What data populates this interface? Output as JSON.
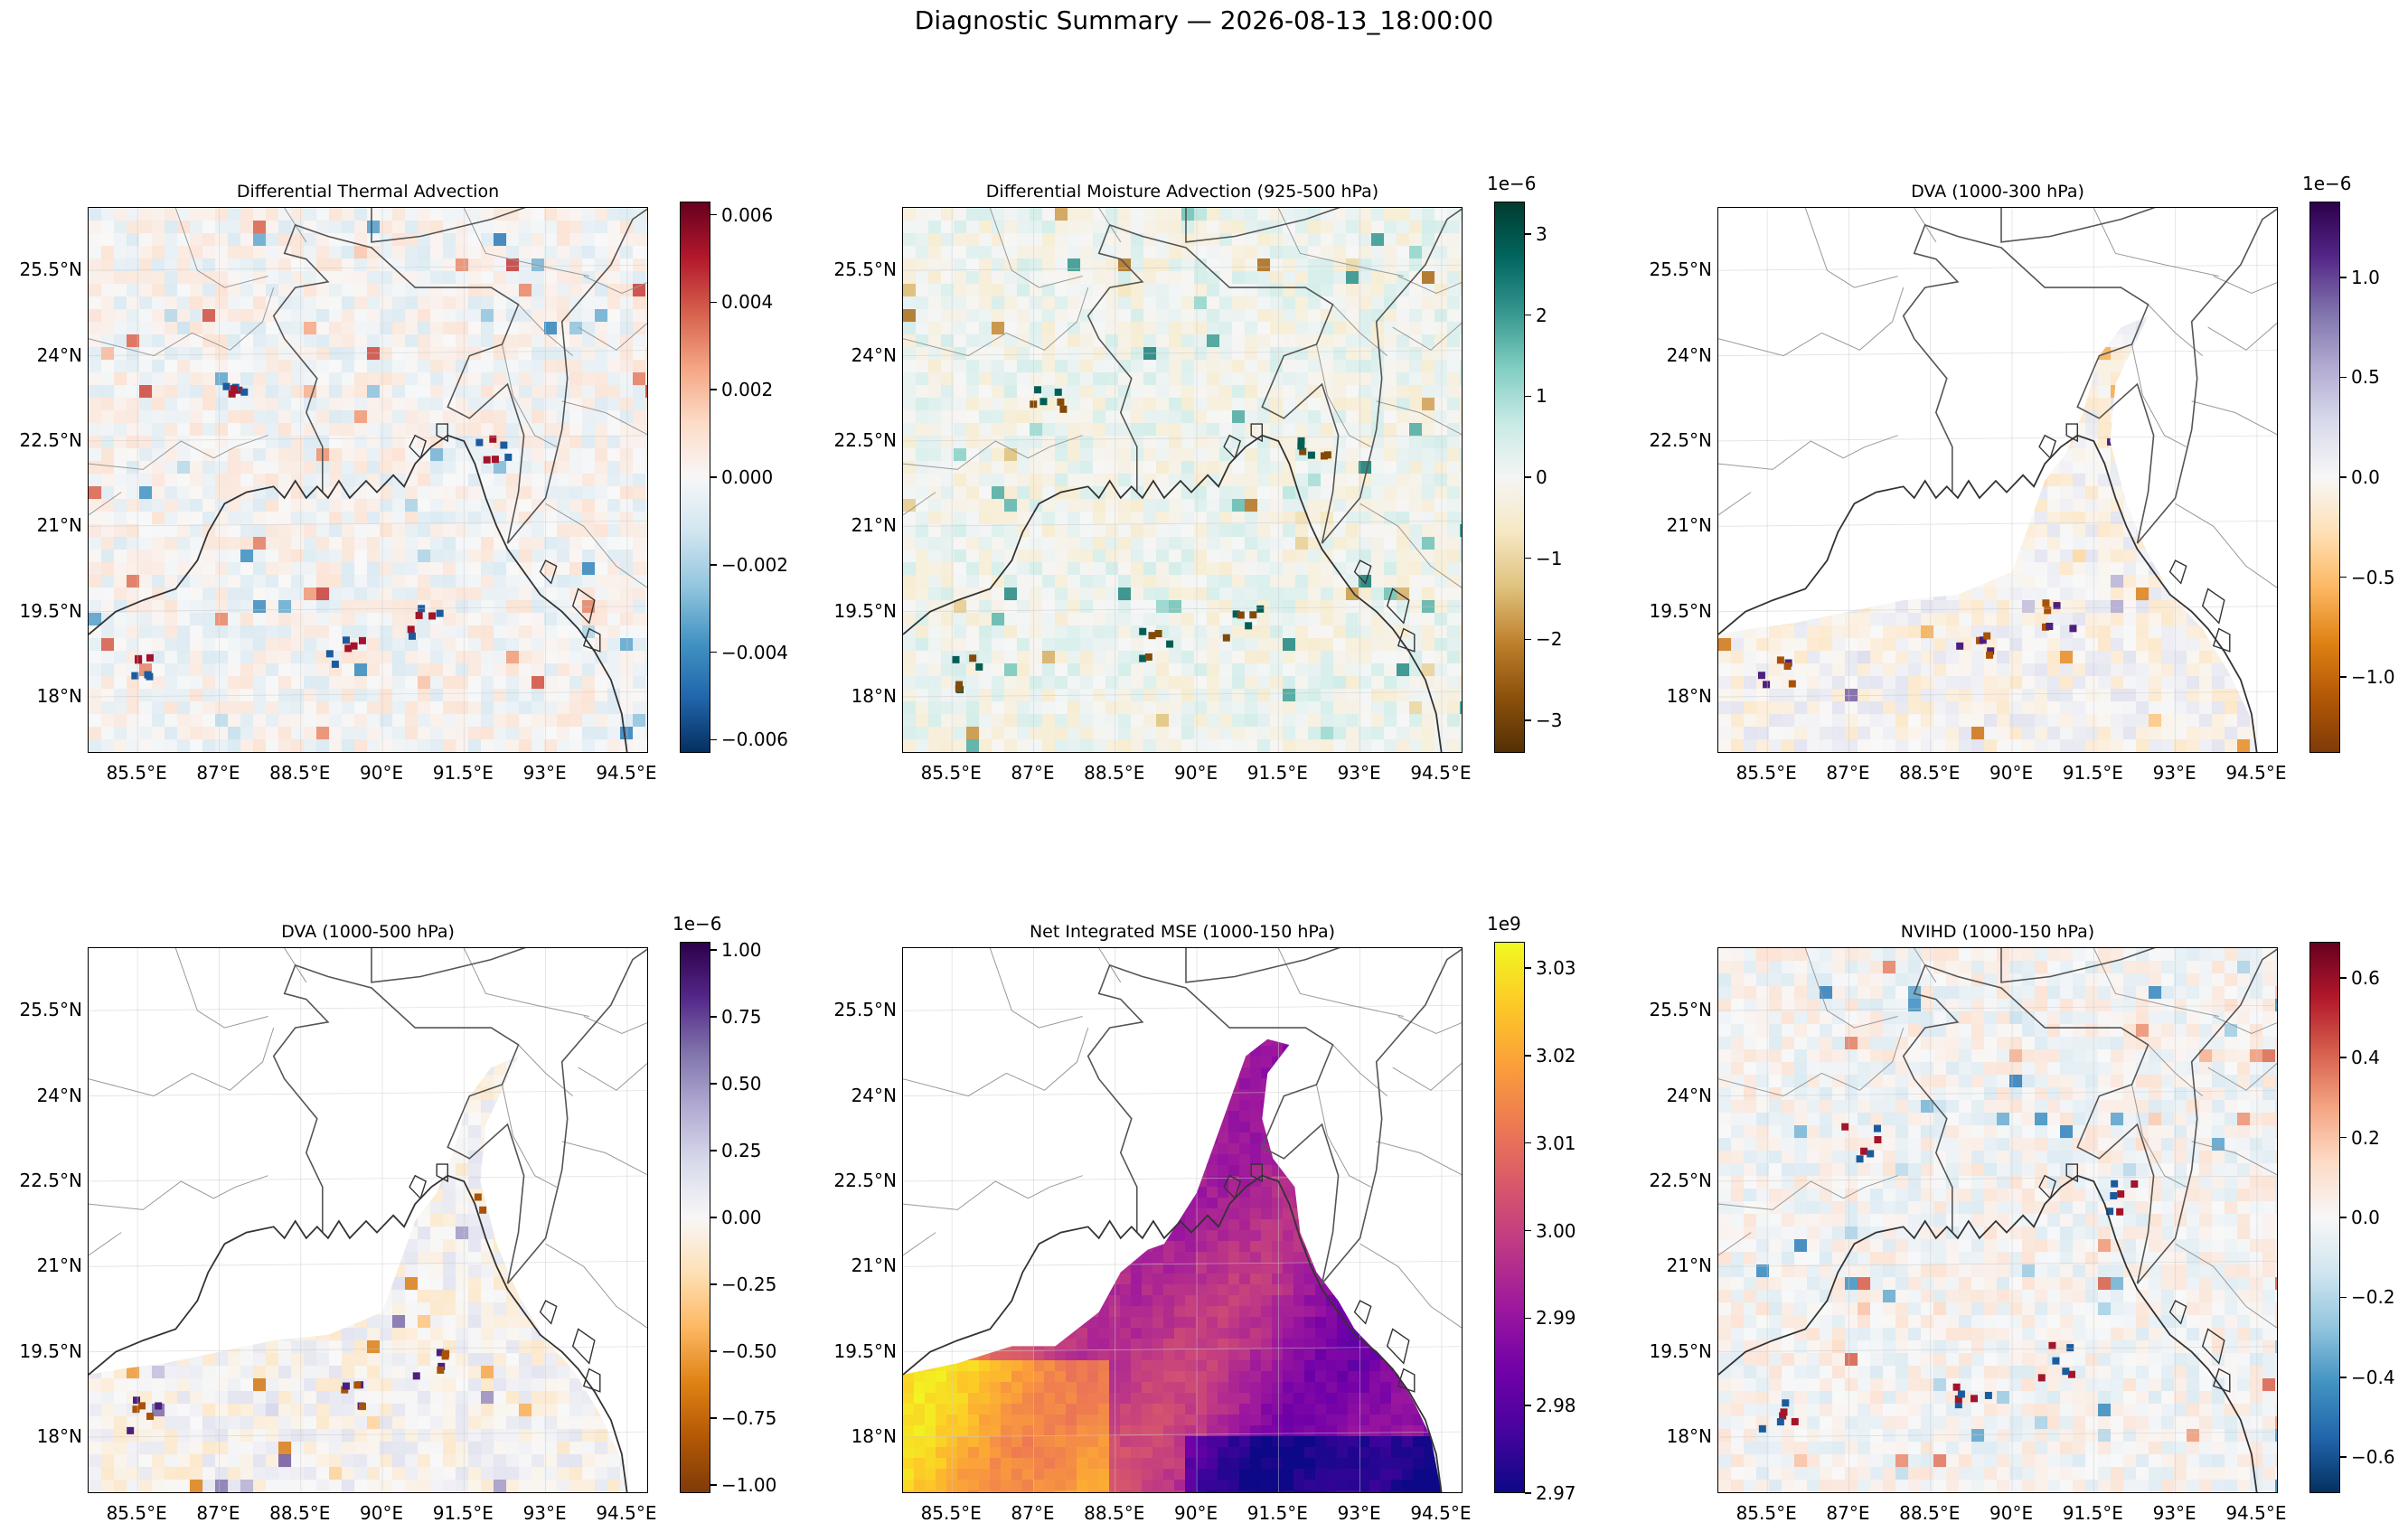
{
  "figure": {
    "title": "Diagnostic Summary — 2026-08-13_18:00:00"
  },
  "axes_ticks": {
    "lon_labels": [
      "85.5°E",
      "87°E",
      "88.5°E",
      "90°E",
      "91.5°E",
      "93°E",
      "94.5°E"
    ],
    "lat_labels": [
      "25.5°N",
      "24°N",
      "22.5°N",
      "21°N",
      "19.5°N",
      "18°N"
    ]
  },
  "chart_data": [
    {
      "type": "heatmap",
      "title": "Differential Thermal Advection",
      "colormap": "RdBu_r",
      "colorbar": {
        "ticks": [
          0.006,
          0.004,
          0.002,
          0.0,
          -0.002,
          -0.004,
          -0.006
        ],
        "tick_labels": [
          "0.006",
          "0.004",
          "0.002",
          "0.000",
          "−0.002",
          "−0.004",
          "−0.006"
        ],
        "range": [
          -0.0063,
          0.0063
        ],
        "exponent": ""
      },
      "colors": [
        "#053061",
        "#2166ac",
        "#4393c3",
        "#92c5de",
        "#d1e5f0",
        "#f7f7f7",
        "#fddbc7",
        "#f4a582",
        "#d6604d",
        "#b2182b",
        "#67001f"
      ]
    },
    {
      "type": "heatmap",
      "title": "Differential Moisture Advection (925-500 hPa)",
      "colormap": "BrBG",
      "colorbar": {
        "ticks": [
          3,
          2,
          1,
          0,
          -1,
          -2,
          -3
        ],
        "tick_labels": [
          "3",
          "2",
          "1",
          "0",
          "−1",
          "−2",
          "−3"
        ],
        "range": [
          -3.4,
          3.4
        ],
        "exponent": "1e−6"
      },
      "colors": [
        "#543005",
        "#8c510a",
        "#bf812d",
        "#dfc27d",
        "#f6e8c3",
        "#f5f5f5",
        "#c7eae5",
        "#80cdc1",
        "#35978f",
        "#01665e",
        "#003c30"
      ]
    },
    {
      "type": "heatmap",
      "title": "DVA (1000-300 hPa)",
      "colormap": "PuOr",
      "colorbar": {
        "ticks": [
          1.0,
          0.5,
          0.0,
          -0.5,
          -1.0
        ],
        "tick_labels": [
          "1.0",
          "0.5",
          "0.0",
          "−0.5",
          "−1.0"
        ],
        "range": [
          -1.38,
          1.38
        ],
        "exponent": "1e−6"
      },
      "colors": [
        "#7f3b08",
        "#b35806",
        "#e08214",
        "#fdb863",
        "#fee0b6",
        "#f7f7f7",
        "#d8daeb",
        "#b2abd2",
        "#8073ac",
        "#542788",
        "#2d004b"
      ]
    },
    {
      "type": "heatmap",
      "title": "DVA (1000-500 hPa)",
      "colormap": "PuOr",
      "colorbar": {
        "ticks": [
          1.0,
          0.75,
          0.5,
          0.25,
          0.0,
          -0.25,
          -0.5,
          -0.75,
          -1.0
        ],
        "tick_labels": [
          "1.00",
          "0.75",
          "0.50",
          "0.25",
          "0.00",
          "−0.25",
          "−0.50",
          "−0.75",
          "−1.00"
        ],
        "range": [
          -1.03,
          1.03
        ],
        "exponent": "1e−6"
      },
      "colors": [
        "#7f3b08",
        "#b35806",
        "#e08214",
        "#fdb863",
        "#fee0b6",
        "#f7f7f7",
        "#d8daeb",
        "#b2abd2",
        "#8073ac",
        "#542788",
        "#2d004b"
      ]
    },
    {
      "type": "heatmap",
      "title": "Net Integrated MSE (1000-150 hPa)",
      "colormap": "plasma",
      "colorbar": {
        "ticks": [
          3.03,
          3.02,
          3.01,
          3.0,
          2.99,
          2.98,
          2.97
        ],
        "tick_labels": [
          "3.03",
          "3.02",
          "3.01",
          "3.00",
          "2.99",
          "2.98",
          "2.97"
        ],
        "range": [
          2.97,
          3.033
        ],
        "exponent": "1e9"
      },
      "colors": [
        "#0d0887",
        "#46039f",
        "#7201a8",
        "#9c179e",
        "#bd3786",
        "#d8576b",
        "#ed7953",
        "#fb9f3a",
        "#fdca26",
        "#f0f921"
      ]
    },
    {
      "type": "heatmap",
      "title": "NVIHD (1000-150 hPa)",
      "colormap": "RdBu_r",
      "colorbar": {
        "ticks": [
          0.6,
          0.4,
          0.2,
          0.0,
          -0.2,
          -0.4,
          -0.6
        ],
        "tick_labels": [
          "0.6",
          "0.4",
          "0.2",
          "0.0",
          "−0.2",
          "−0.4",
          "−0.6"
        ],
        "range": [
          -0.69,
          0.69
        ],
        "exponent": ""
      },
      "colors": [
        "#053061",
        "#2166ac",
        "#4393c3",
        "#92c5de",
        "#d1e5f0",
        "#f7f7f7",
        "#fddbc7",
        "#f4a582",
        "#d6604d",
        "#b2182b",
        "#67001f"
      ]
    }
  ]
}
